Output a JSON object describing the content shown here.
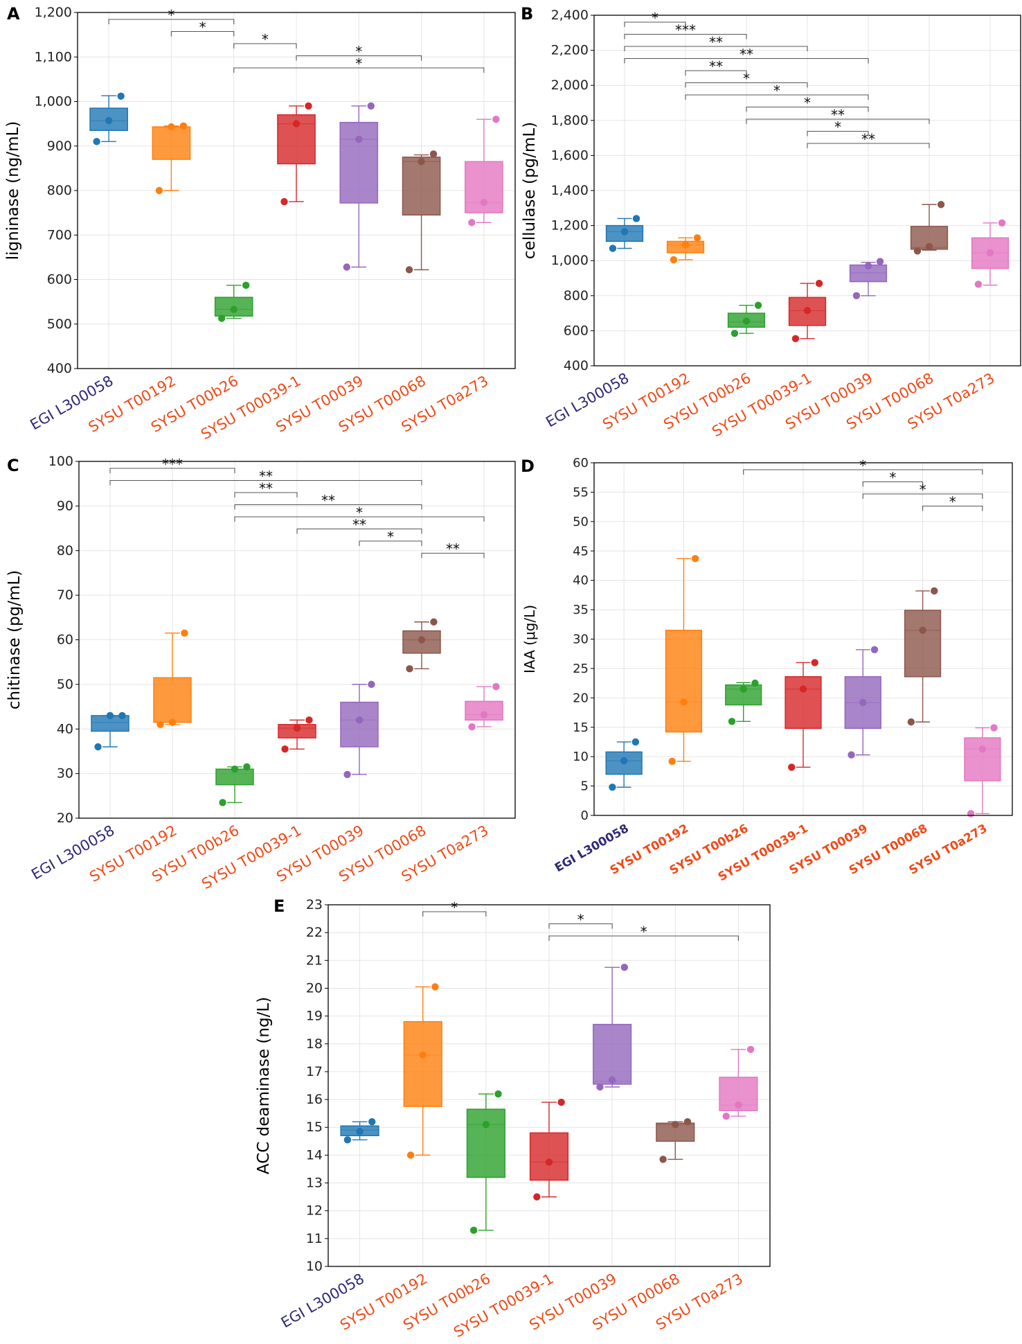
{
  "figure": {
    "cats": [
      "EGI L300058",
      "SYSU T00192",
      "SYSU T00b26",
      "SYSU T00039-1",
      "SYSU T00039",
      "SYSU T00068",
      "SYSU T0a273"
    ],
    "colors": [
      "#1f77b4",
      "#ff7f0e",
      "#2ca02c",
      "#d62728",
      "#9467bd",
      "#8c564b",
      "#e377c2"
    ],
    "label_colors": [
      "#2e2a7a",
      "#f04a18",
      "#f04a18",
      "#f04a18",
      "#f04a18",
      "#f04a18",
      "#f04a18"
    ]
  },
  "chart_data": [
    {
      "id": "A",
      "panel_label": "A",
      "type": "box",
      "ylabel": "ligninase (ng/mL)",
      "ylim": [
        400,
        1200
      ],
      "yticks": [
        400,
        500,
        600,
        700,
        800,
        900,
        1000,
        1100,
        1200
      ],
      "ytick_labels": [
        "400",
        "500",
        "600",
        "700",
        "800",
        "900",
        "1,000",
        "1,100",
        "1,200"
      ],
      "boxes": [
        {
          "q1": 935,
          "median": 957,
          "q3": 985,
          "low": 910,
          "high": 1013,
          "points": [
            910,
            957,
            1012
          ]
        },
        {
          "q1": 870,
          "median": 943,
          "q3": 943,
          "low": 800,
          "high": 945,
          "points": [
            800,
            943,
            945
          ]
        },
        {
          "q1": 518,
          "median": 533,
          "q3": 560,
          "low": 513,
          "high": 587,
          "points": [
            513,
            533,
            587
          ]
        },
        {
          "q1": 860,
          "median": 950,
          "q3": 970,
          "low": 775,
          "high": 990,
          "points": [
            775,
            950,
            990
          ]
        },
        {
          "q1": 772,
          "median": 915,
          "q3": 953,
          "low": 628,
          "high": 990,
          "points": [
            628,
            915,
            990
          ]
        },
        {
          "q1": 745,
          "median": 865,
          "q3": 875,
          "low": 622,
          "high": 880,
          "points": [
            622,
            865,
            882
          ]
        },
        {
          "q1": 750,
          "median": 773,
          "q3": 865,
          "low": 728,
          "high": 960,
          "points": [
            728,
            773,
            960
          ]
        }
      ],
      "sig": [
        {
          "a": 0,
          "b": 2,
          "label": "*"
        },
        {
          "a": 1,
          "b": 2,
          "label": "*"
        },
        {
          "a": 2,
          "b": 3,
          "label": "*"
        },
        {
          "a": 3,
          "b": 5,
          "label": "*"
        },
        {
          "a": 2,
          "b": 6,
          "label": "*"
        }
      ]
    },
    {
      "id": "B",
      "panel_label": "B",
      "type": "box",
      "ylabel": "cellulase (pg/mL)",
      "ylim": [
        400,
        2400
      ],
      "yticks": [
        400,
        600,
        800,
        1000,
        1200,
        1400,
        1600,
        1800,
        2000,
        2200,
        2400
      ],
      "ytick_labels": [
        "400",
        "600",
        "800",
        "1,000",
        "1,200",
        "1,400",
        "1,600",
        "1,800",
        "2,000",
        "2,200",
        "2,400"
      ],
      "boxes": [
        {
          "q1": 1110,
          "median": 1165,
          "q3": 1200,
          "low": 1070,
          "high": 1240,
          "points": [
            1070,
            1165,
            1240
          ]
        },
        {
          "q1": 1045,
          "median": 1090,
          "q3": 1110,
          "low": 1005,
          "high": 1130,
          "points": [
            1005,
            1090,
            1130
          ]
        },
        {
          "q1": 620,
          "median": 650,
          "q3": 700,
          "low": 585,
          "high": 745,
          "points": [
            585,
            655,
            745
          ]
        },
        {
          "q1": 630,
          "median": 715,
          "q3": 790,
          "low": 555,
          "high": 870,
          "points": [
            555,
            715,
            870
          ]
        },
        {
          "q1": 880,
          "median": 930,
          "q3": 975,
          "low": 800,
          "high": 990,
          "points": [
            800,
            970,
            995
          ]
        },
        {
          "q1": 1065,
          "median": 1075,
          "q3": 1195,
          "low": 1060,
          "high": 1320,
          "points": [
            1055,
            1080,
            1320
          ]
        },
        {
          "q1": 955,
          "median": 1045,
          "q3": 1130,
          "low": 860,
          "high": 1215,
          "points": [
            865,
            1045,
            1215
          ]
        }
      ],
      "sig": [
        {
          "a": 0,
          "b": 1,
          "label": "*"
        },
        {
          "a": 0,
          "b": 2,
          "label": "***"
        },
        {
          "a": 0,
          "b": 3,
          "label": "**"
        },
        {
          "a": 0,
          "b": 4,
          "label": "**"
        },
        {
          "a": 1,
          "b": 2,
          "label": "**"
        },
        {
          "a": 1,
          "b": 3,
          "label": "*"
        },
        {
          "a": 1,
          "b": 4,
          "label": "*"
        },
        {
          "a": 2,
          "b": 4,
          "label": "*"
        },
        {
          "a": 2,
          "b": 5,
          "label": "**"
        },
        {
          "a": 3,
          "b": 4,
          "label": "*"
        },
        {
          "a": 3,
          "b": 5,
          "label": "**"
        }
      ]
    },
    {
      "id": "C",
      "panel_label": "C",
      "type": "box",
      "ylabel": "chitinase (pg/mL)",
      "ylim": [
        20,
        100
      ],
      "yticks": [
        20,
        30,
        40,
        50,
        60,
        70,
        80,
        90,
        100
      ],
      "ytick_labels": [
        "20",
        "30",
        "40",
        "50",
        "60",
        "70",
        "80",
        "90",
        "100"
      ],
      "boxes": [
        {
          "q1": 39.5,
          "median": 41.5,
          "q3": 43,
          "low": 36,
          "high": 43,
          "points": [
            36,
            43,
            43
          ]
        },
        {
          "q1": 41.5,
          "median": 41.5,
          "q3": 51.5,
          "low": 41,
          "high": 61.5,
          "points": [
            41,
            41.5,
            61.5
          ]
        },
        {
          "q1": 27.5,
          "median": 31,
          "q3": 31,
          "low": 23.5,
          "high": 31.5,
          "points": [
            23.5,
            31,
            31.5
          ]
        },
        {
          "q1": 38,
          "median": 40.2,
          "q3": 41,
          "low": 35.5,
          "high": 42,
          "points": [
            35.5,
            40.2,
            42
          ]
        },
        {
          "q1": 36,
          "median": 42,
          "q3": 46,
          "low": 29.8,
          "high": 50,
          "points": [
            29.8,
            42,
            50
          ]
        },
        {
          "q1": 57,
          "median": 60,
          "q3": 62,
          "low": 53.5,
          "high": 64,
          "points": [
            53.5,
            60,
            64
          ]
        },
        {
          "q1": 42,
          "median": 43.2,
          "q3": 46.2,
          "low": 40.5,
          "high": 49.5,
          "points": [
            40.5,
            43.2,
            49.5
          ]
        }
      ],
      "sig": [
        {
          "a": 0,
          "b": 2,
          "label": "***"
        },
        {
          "a": 0,
          "b": 5,
          "label": "**"
        },
        {
          "a": 2,
          "b": 3,
          "label": "**"
        },
        {
          "a": 2,
          "b": 5,
          "label": "**"
        },
        {
          "a": 2,
          "b": 6,
          "label": "*"
        },
        {
          "a": 3,
          "b": 5,
          "label": "**"
        },
        {
          "a": 4,
          "b": 5,
          "label": "*"
        },
        {
          "a": 5,
          "b": 6,
          "label": "**"
        }
      ]
    },
    {
      "id": "D",
      "panel_label": "D",
      "type": "box",
      "ylabel": "IAA (μg/L)",
      "ylim": [
        0,
        60
      ],
      "yticks": [
        0,
        5,
        10,
        15,
        20,
        25,
        30,
        35,
        40,
        45,
        50,
        55,
        60
      ],
      "ytick_labels": [
        "0",
        "5",
        "10",
        "15",
        "20",
        "25",
        "30",
        "35",
        "40",
        "45",
        "50",
        "55",
        "60"
      ],
      "boxes": [
        {
          "q1": 7,
          "median": 9.3,
          "q3": 10.8,
          "low": 4.8,
          "high": 12.5,
          "points": [
            4.8,
            9.3,
            12.5
          ]
        },
        {
          "q1": 14.2,
          "median": 19.3,
          "q3": 31.5,
          "low": 9.2,
          "high": 43.7,
          "points": [
            9.2,
            19.3,
            43.7
          ]
        },
        {
          "q1": 18.8,
          "median": 21.5,
          "q3": 22.2,
          "low": 16,
          "high": 22.6,
          "points": [
            16,
            21.5,
            22.5
          ]
        },
        {
          "q1": 14.8,
          "median": 21.5,
          "q3": 23.6,
          "low": 8.2,
          "high": 26,
          "points": [
            8.2,
            21.5,
            26
          ]
        },
        {
          "q1": 14.8,
          "median": 19.2,
          "q3": 23.6,
          "low": 10.3,
          "high": 28.2,
          "points": [
            10.3,
            19.2,
            28.2
          ]
        },
        {
          "q1": 23.6,
          "median": 31.5,
          "q3": 34.9,
          "low": 15.9,
          "high": 38.2,
          "points": [
            15.9,
            31.5,
            38.2
          ]
        },
        {
          "q1": 5.9,
          "median": 11.3,
          "q3": 13.2,
          "low": 0.3,
          "high": 14.9,
          "points": [
            0.3,
            11.3,
            14.9
          ]
        }
      ],
      "sig": [
        {
          "a": 2,
          "b": 6,
          "label": "*"
        },
        {
          "a": 4,
          "b": 5,
          "label": "*"
        },
        {
          "a": 4,
          "b": 6,
          "label": "*"
        },
        {
          "a": 5,
          "b": 6,
          "label": "*"
        }
      ]
    },
    {
      "id": "E",
      "panel_label": "E",
      "type": "box",
      "ylabel": "ACC deaminase (ng/L)",
      "ylim": [
        10,
        23
      ],
      "yticks": [
        10,
        11,
        12,
        13,
        14,
        15,
        16,
        17,
        18,
        19,
        20,
        21,
        22,
        23
      ],
      "ytick_labels": [
        "10",
        "11",
        "12",
        "13",
        "14",
        "15",
        "16",
        "17",
        "18",
        "19",
        "20",
        "21",
        "22",
        "23"
      ],
      "boxes": [
        {
          "q1": 14.7,
          "median": 14.9,
          "q3": 15.05,
          "low": 14.55,
          "high": 15.2,
          "points": [
            14.55,
            14.85,
            15.2
          ]
        },
        {
          "q1": 15.75,
          "median": 17.6,
          "q3": 18.8,
          "low": 14,
          "high": 20.05,
          "points": [
            14,
            17.6,
            20.05
          ]
        },
        {
          "q1": 13.2,
          "median": 15.1,
          "q3": 15.65,
          "low": 11.3,
          "high": 16.2,
          "points": [
            11.3,
            15.1,
            16.2
          ]
        },
        {
          "q1": 13.1,
          "median": 13.75,
          "q3": 14.8,
          "low": 12.5,
          "high": 15.9,
          "points": [
            12.5,
            13.75,
            15.9
          ]
        },
        {
          "q1": 16.55,
          "median": 16.65,
          "q3": 18.7,
          "low": 16.45,
          "high": 20.75,
          "points": [
            16.45,
            16.7,
            20.75
          ]
        },
        {
          "q1": 14.5,
          "median": 15.1,
          "q3": 15.15,
          "low": 13.85,
          "high": 15.2,
          "points": [
            13.85,
            15.1,
            15.2
          ]
        },
        {
          "q1": 15.6,
          "median": 15.8,
          "q3": 16.8,
          "low": 15.4,
          "high": 17.8,
          "points": [
            15.4,
            15.8,
            17.8
          ]
        }
      ],
      "sig": [
        {
          "a": 1,
          "b": 2,
          "label": "*"
        },
        {
          "a": 3,
          "b": 4,
          "label": "*"
        },
        {
          "a": 3,
          "b": 6,
          "label": "*"
        }
      ]
    }
  ]
}
